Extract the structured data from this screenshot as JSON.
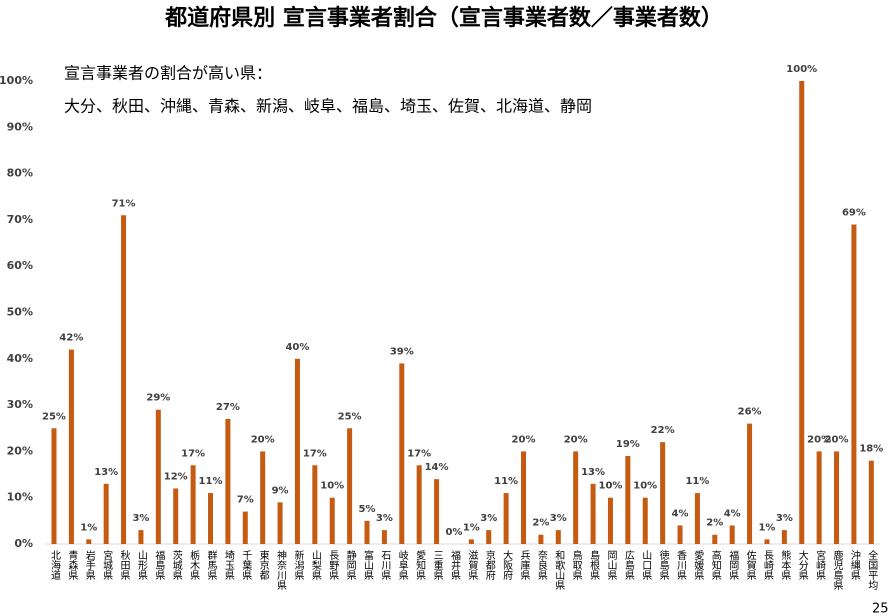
{
  "chart_data": {
    "type": "bar",
    "title": "都道府県別 宣言事業者割合（宣言事業者数／事業者数）",
    "annotations": [
      "宣言事業者の割合が高い県：",
      "大分、秋田、沖縄、青森、新潟、岐阜、福島、埼玉、佐賀、北海道、静岡"
    ],
    "page_number": "25",
    "categories": [
      "北海道",
      "青森県",
      "岩手県",
      "宮城県",
      "秋田県",
      "山形県",
      "福島県",
      "茨城県",
      "栃木県",
      "群馬県",
      "埼玉県",
      "千葉県",
      "東京都",
      "神奈川県",
      "新潟県",
      "山梨県",
      "長野県",
      "静岡県",
      "富山県",
      "石川県",
      "岐阜県",
      "愛知県",
      "三重県",
      "福井県",
      "滋賀県",
      "京都府",
      "大阪府",
      "兵庫県",
      "奈良県",
      "和歌山県",
      "鳥取県",
      "島根県",
      "岡山県",
      "広島県",
      "山口県",
      "徳島県",
      "香川県",
      "愛媛県",
      "高知県",
      "福岡県",
      "佐賀県",
      "長崎県",
      "熊本県",
      "大分県",
      "宮崎県",
      "鹿児島県",
      "沖縄県",
      "全国平均"
    ],
    "values": [
      25,
      42,
      1,
      13,
      71,
      3,
      29,
      12,
      17,
      11,
      27,
      7,
      20,
      9,
      40,
      17,
      10,
      25,
      5,
      3,
      39,
      17,
      14,
      0,
      1,
      3,
      11,
      20,
      2,
      3,
      20,
      13,
      10,
      19,
      10,
      22,
      4,
      11,
      2,
      4,
      26,
      1,
      3,
      100,
      20,
      20,
      69,
      18
    ],
    "value_labels": [
      "25%",
      "42%",
      "1%",
      "13%",
      "71%",
      "3%",
      "29%",
      "12%",
      "17%",
      "11%",
      "27%",
      "7%",
      "20%",
      "9%",
      "40%",
      "17%",
      "10%",
      "25%",
      "5%",
      "3%",
      "39%",
      "17%",
      "14%",
      "0%",
      "1%",
      "3%",
      "11%",
      "20%",
      "2%",
      "3%",
      "20%",
      "13%",
      "10%",
      "19%",
      "10%",
      "22%",
      "4%",
      "11%",
      "2%",
      "4%",
      "26%",
      "1%",
      "3%",
      "100%",
      "20%",
      "20%",
      "69%",
      "18%"
    ],
    "color": "#c55a11",
    "ylim": [
      0,
      100
    ],
    "yticks": [
      {
        "value": 0,
        "label": "0%"
      },
      {
        "value": 10,
        "label": "10%"
      },
      {
        "value": 20,
        "label": "20%"
      },
      {
        "value": 30,
        "label": "30%"
      },
      {
        "value": 40,
        "label": "40%"
      },
      {
        "value": 50,
        "label": "50%"
      },
      {
        "value": 60,
        "label": "60%"
      },
      {
        "value": 70,
        "label": "70%"
      },
      {
        "value": 80,
        "label": "80%"
      },
      {
        "value": 90,
        "label": "90%"
      },
      {
        "value": 100,
        "label": "100%"
      }
    ],
    "grid": false
  }
}
